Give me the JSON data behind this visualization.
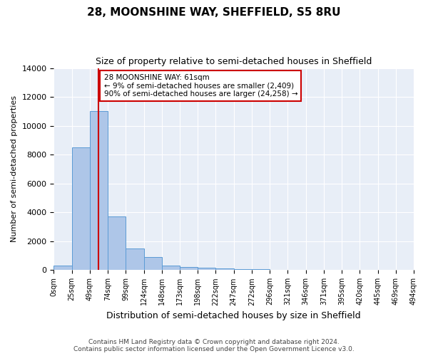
{
  "title": "28, MOONSHINE WAY, SHEFFIELD, S5 8RU",
  "subtitle": "Size of property relative to semi-detached houses in Sheffield",
  "xlabel": "Distribution of semi-detached houses by size in Sheffield",
  "ylabel": "Number of semi-detached properties",
  "property_size": 61,
  "property_label": "28 MOONSHINE WAY: 61sqm",
  "pct_smaller": 9,
  "count_smaller": 2409,
  "pct_larger": 90,
  "count_larger": 24258,
  "bar_color": "#aec6e8",
  "bar_edge_color": "#5b9bd5",
  "vline_color": "#cc0000",
  "annotation_box_color": "#cc0000",
  "background_color": "#e8eef7",
  "grid_color": "#ffffff",
  "footer_text": "Contains HM Land Registry data © Crown copyright and database right 2024.\nContains public sector information licensed under the Open Government Licence v3.0.",
  "bin_labels": [
    "0sqm",
    "25sqm",
    "49sqm",
    "74sqm",
    "99sqm",
    "124sqm",
    "148sqm",
    "173sqm",
    "198sqm",
    "222sqm",
    "247sqm",
    "272sqm",
    "296sqm",
    "321sqm",
    "346sqm",
    "371sqm",
    "395sqm",
    "420sqm",
    "445sqm",
    "469sqm",
    "494sqm"
  ],
  "counts": [
    300,
    8500,
    11000,
    3700,
    1500,
    900,
    300,
    200,
    150,
    100,
    60,
    50,
    10,
    5,
    3,
    2,
    1,
    1,
    0,
    0
  ],
  "ylim": [
    0,
    14000
  ],
  "vline_index": 1.44
}
